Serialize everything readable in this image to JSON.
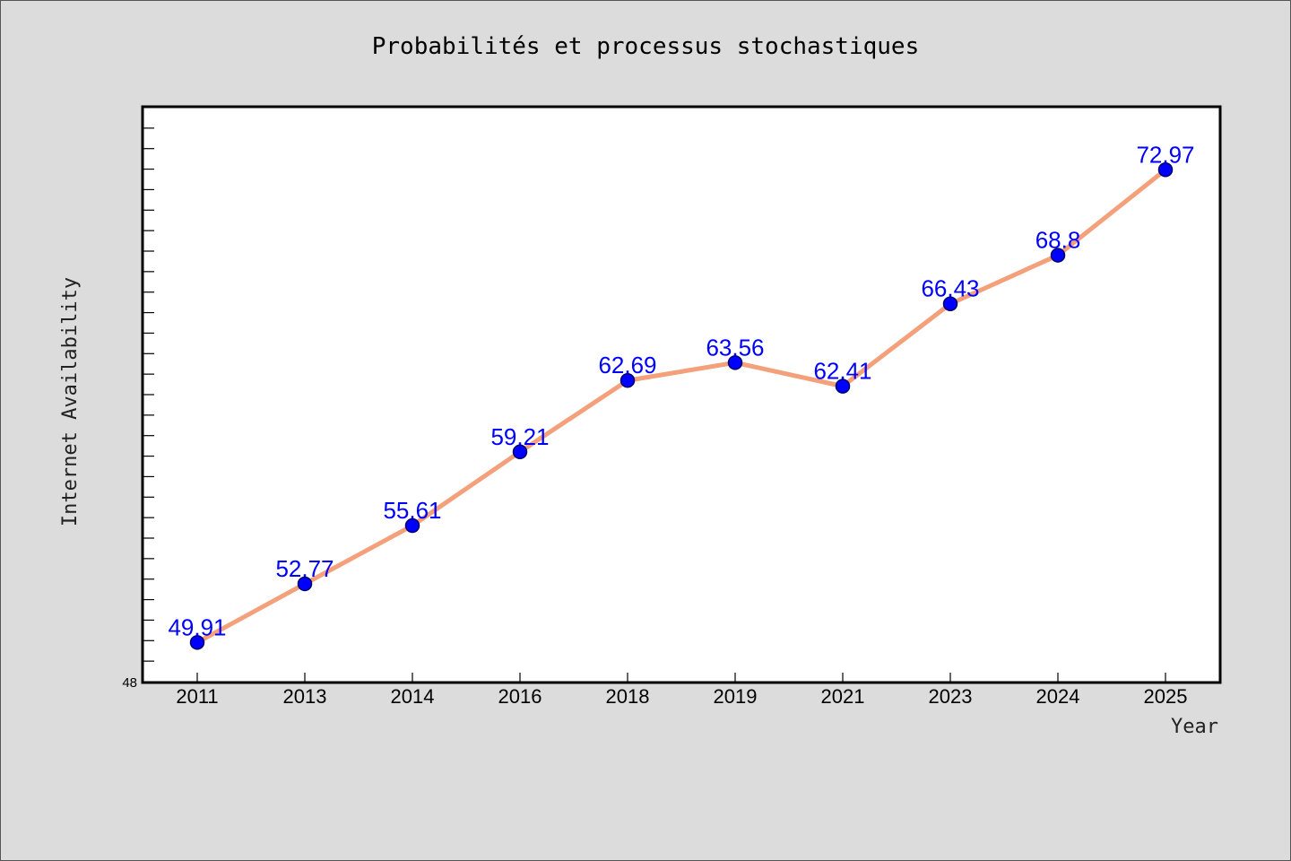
{
  "chart_data": {
    "type": "line",
    "title": "Probabilités et processus stochastiques",
    "xlabel": "Year",
    "ylabel": "Internet Availability",
    "categories": [
      "2011",
      "2013",
      "2014",
      "2016",
      "2018",
      "2019",
      "2021",
      "2023",
      "2024",
      "2025"
    ],
    "values": [
      49.91,
      52.77,
      55.61,
      59.21,
      62.69,
      63.56,
      62.41,
      66.43,
      68.8,
      72.97
    ],
    "data_labels": [
      "49.91",
      "52.77",
      "55.61",
      "59.21",
      "62.69",
      "63.56",
      "62.41",
      "66.43",
      "68.8",
      "72.97"
    ],
    "ylim": [
      48,
      76
    ],
    "y_min_label": "48",
    "grid": false,
    "legend": "none",
    "colors": {
      "line": "#f4a07a",
      "marker": "#0000ff",
      "marker_edge": "#00006b",
      "label": "#0000ff",
      "background": "#dcdcdc",
      "plot_area": "#ffffff"
    }
  }
}
